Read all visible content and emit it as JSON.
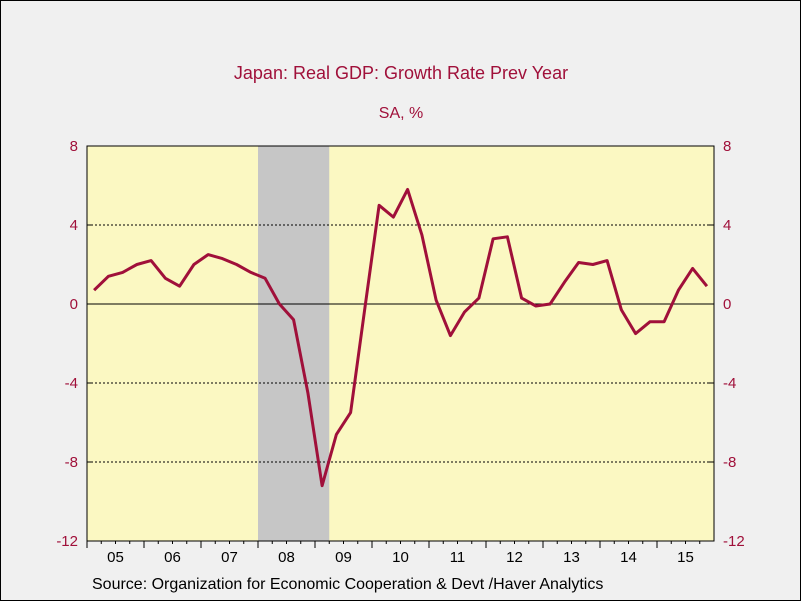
{
  "chart_data": {
    "type": "line",
    "title": "Japan: Real GDP: Growth Rate Prev Year",
    "subtitle": "SA, %",
    "source": "Source:  Organization for Economic Cooperation & Devt /Haver Analytics",
    "ylim": [
      -12,
      8
    ],
    "yticks": [
      8,
      4,
      0,
      -4,
      -8,
      -12
    ],
    "ytick_labels": [
      "8",
      "4",
      "0",
      "-4",
      "-8",
      "-12"
    ],
    "xlim": [
      2005.0,
      2016.0
    ],
    "xticks": [
      {
        "label": "05",
        "year": 2005
      },
      {
        "label": "06",
        "year": 2006
      },
      {
        "label": "07",
        "year": 2007
      },
      {
        "label": "08",
        "year": 2008
      },
      {
        "label": "09",
        "year": 2009
      },
      {
        "label": "10",
        "year": 2010
      },
      {
        "label": "11",
        "year": 2011
      },
      {
        "label": "12",
        "year": 2012
      },
      {
        "label": "13",
        "year": 2013
      },
      {
        "label": "14",
        "year": 2014
      },
      {
        "label": "15",
        "year": 2015
      }
    ],
    "gridlines": [
      4,
      -4,
      -8
    ],
    "zero_line": 0,
    "recession": {
      "start": 2008.0,
      "end": 2009.25
    },
    "colors": {
      "line": "#a0103a",
      "plot_bg": "#fbf8c2",
      "recession": "#c6c6c6",
      "text_accent": "#a0103a"
    },
    "series": [
      {
        "x": [
          "2005 Q1",
          "2005 Q2",
          "2005 Q3",
          "2005 Q4",
          "2006 Q1",
          "2006 Q2",
          "2006 Q3",
          "2006 Q4",
          "2007 Q1",
          "2007 Q2",
          "2007 Q3",
          "2007 Q4",
          "2008 Q1",
          "2008 Q2",
          "2008 Q3",
          "2008 Q4",
          "2009 Q1",
          "2009 Q2",
          "2009 Q3",
          "2009 Q4",
          "2010 Q1",
          "2010 Q2",
          "2010 Q3",
          "2010 Q4",
          "2011 Q1",
          "2011 Q2",
          "2011 Q3",
          "2011 Q4",
          "2012 Q1",
          "2012 Q2",
          "2012 Q3",
          "2012 Q4",
          "2013 Q1",
          "2013 Q2",
          "2013 Q3",
          "2013 Q4",
          "2014 Q1",
          "2014 Q2",
          "2014 Q3",
          "2014 Q4",
          "2015 Q1",
          "2015 Q2",
          "2015 Q3",
          "2015 Q4"
        ],
        "values": [
          0.7,
          1.4,
          1.6,
          2.0,
          2.2,
          1.3,
          0.9,
          2.0,
          2.5,
          2.3,
          2.0,
          1.6,
          1.3,
          0.0,
          -0.8,
          -4.5,
          -9.2,
          -6.6,
          -5.5,
          -0.2,
          5.0,
          4.4,
          5.8,
          3.5,
          0.2,
          -1.6,
          -0.4,
          0.3,
          3.3,
          3.4,
          0.3,
          -0.1,
          0.0,
          1.1,
          2.1,
          2.0,
          2.2,
          -0.3,
          -1.5,
          -0.9,
          -0.9,
          0.7,
          1.8,
          0.9
        ]
      }
    ]
  }
}
